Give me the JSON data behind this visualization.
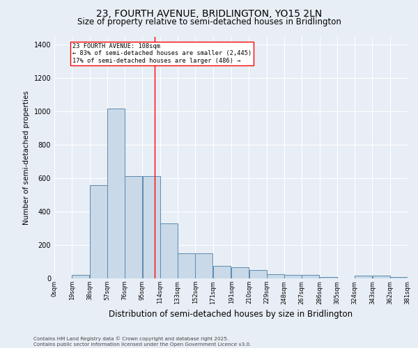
{
  "title": "23, FOURTH AVENUE, BRIDLINGTON, YO15 2LN",
  "subtitle": "Size of property relative to semi-detached houses in Bridlington",
  "xlabel": "Distribution of semi-detached houses by size in Bridlington",
  "ylabel": "Number of semi-detached properties",
  "bar_color": "#c9d9e8",
  "bar_edge_color": "#5a8ab0",
  "background_color": "#e8eef5",
  "grid_color": "#ffffff",
  "vline_x": 108,
  "vline_color": "red",
  "annotation_text": "23 FOURTH AVENUE: 108sqm\n← 83% of semi-detached houses are smaller (2,445)\n17% of semi-detached houses are larger (486) →",
  "annotation_box_color": "white",
  "annotation_box_edge": "red",
  "bin_edges": [
    0,
    19,
    38,
    57,
    76,
    95,
    114,
    133,
    152,
    171,
    191,
    210,
    229,
    248,
    267,
    286,
    305,
    324,
    343,
    362,
    381
  ],
  "values": [
    0,
    20,
    560,
    1020,
    615,
    615,
    330,
    150,
    150,
    75,
    65,
    50,
    25,
    20,
    20,
    10,
    0,
    15,
    15,
    10
  ],
  "ylim": [
    0,
    1450
  ],
  "yticks": [
    0,
    200,
    400,
    600,
    800,
    1000,
    1200,
    1400
  ],
  "footer": "Contains HM Land Registry data © Crown copyright and database right 2025.\nContains public sector information licensed under the Open Government Licence v3.0.",
  "title_fontsize": 10,
  "subtitle_fontsize": 8.5,
  "ylabel_fontsize": 7.5,
  "xlabel_fontsize": 8.5,
  "tick_fontsize": 7,
  "xtick_fontsize": 6
}
